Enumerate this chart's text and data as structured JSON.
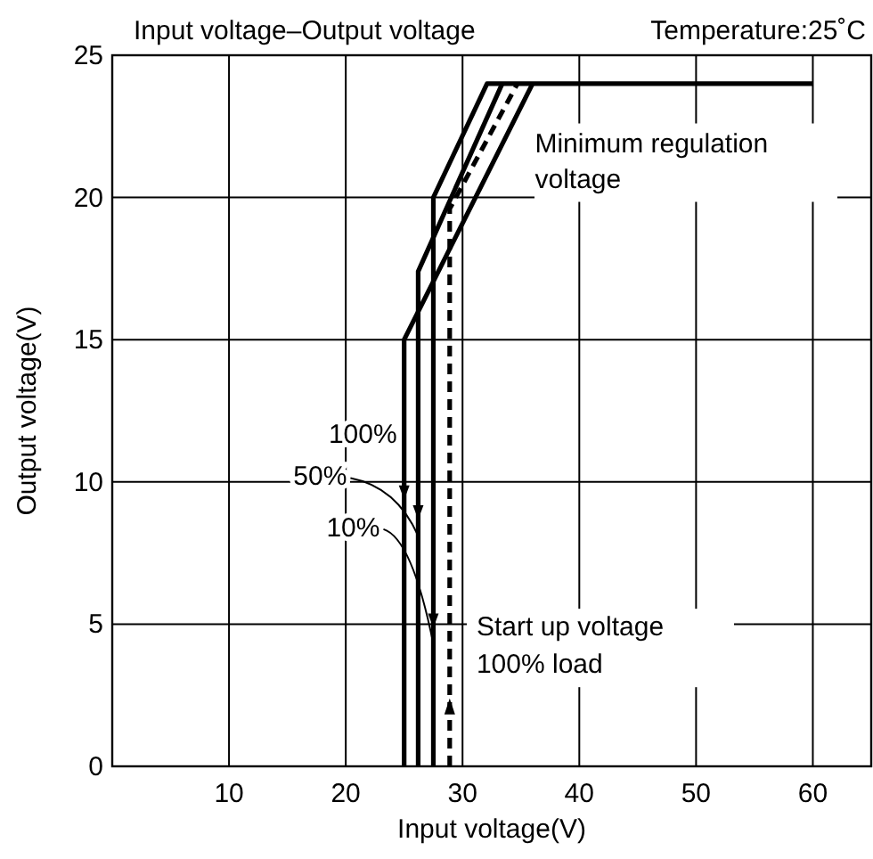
{
  "chart_data": {
    "type": "line",
    "title": "Input voltage–Output voltage",
    "subtitle": "Temperature:25˚C",
    "xlabel": "Input voltage(V)",
    "ylabel": "Output voltage(V)",
    "xlim": [
      0,
      65
    ],
    "xticks": [
      10,
      20,
      30,
      40,
      50,
      60
    ],
    "ylim": [
      0,
      25
    ],
    "yticks": [
      0,
      5,
      10,
      15,
      20,
      25
    ],
    "grid": true,
    "legend": "left",
    "marker": "none",
    "series": [
      {
        "name": "100%",
        "color": "#000000",
        "x": [
          25,
          25,
          36
        ],
        "values": [
          0,
          15,
          24
        ]
      },
      {
        "name": "50%",
        "color": "#000000",
        "x": [
          26.2,
          26.2,
          33.4
        ],
        "values": [
          0,
          17.4,
          24
        ]
      },
      {
        "name": "10%",
        "color": "#000000",
        "x": [
          27.5,
          27.5,
          32.1,
          60
        ],
        "values": [
          0,
          20,
          24,
          24
        ]
      },
      {
        "color": "#000000",
        "line_style": "dashed",
        "x": [
          28.9,
          28.9,
          34.7
        ],
        "values": [
          0,
          19.6,
          24
        ]
      }
    ],
    "annotations": [
      "Minimum regulation voltage",
      "Start up voltage 100% load"
    ]
  }
}
